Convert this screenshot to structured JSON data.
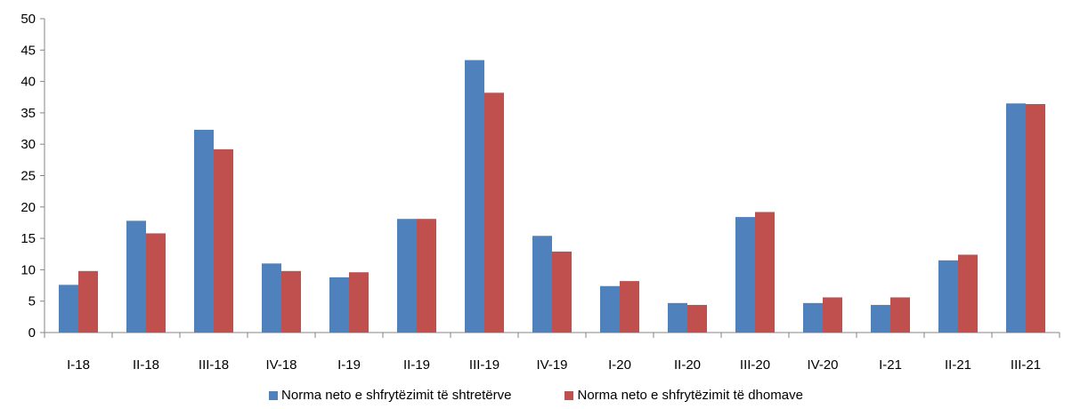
{
  "chart_data": {
    "type": "bar",
    "categories": [
      "I-18",
      "II-18",
      "III-18",
      "IV-18",
      "I-19",
      "II-19",
      "III-19",
      "IV-19",
      "I-20",
      "II-20",
      "III-20",
      "IV-20",
      "I-21",
      "II-21",
      "III-21"
    ],
    "series": [
      {
        "name": "Norma neto e shfrytëzimit të shtretërve",
        "color": "#4F81BD",
        "values": [
          7.6,
          17.8,
          32.3,
          11.0,
          8.8,
          18.1,
          43.4,
          15.4,
          7.4,
          4.7,
          18.4,
          4.7,
          4.4,
          11.5,
          36.5
        ]
      },
      {
        "name": "Norma neto e shfrytëzimit të dhomave",
        "color": "#C0504D",
        "values": [
          9.8,
          15.8,
          29.2,
          9.8,
          9.6,
          18.1,
          38.2,
          12.9,
          8.2,
          4.4,
          19.2,
          5.6,
          5.6,
          12.4,
          36.4
        ]
      }
    ],
    "yticks": [
      "0",
      "5",
      "10",
      "15",
      "20",
      "25",
      "30",
      "35",
      "40",
      "45",
      "50"
    ],
    "ylim": [
      0,
      50
    ],
    "grid": false,
    "legend_position": "bottom"
  }
}
